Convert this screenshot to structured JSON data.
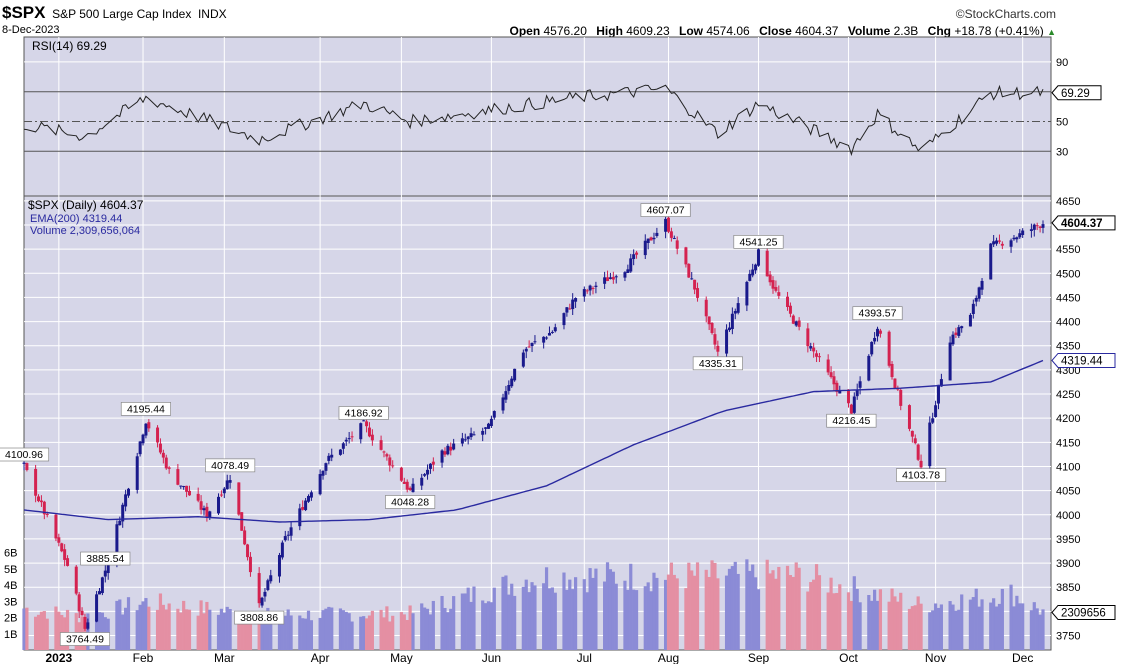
{
  "header": {
    "symbol": "$SPX",
    "name": "S&P 500 Large Cap Index",
    "exchange": "INDX",
    "date": "8-Dec-2023",
    "brand": "©StockCharts.com",
    "open_label": "Open",
    "open": "4576.20",
    "high_label": "High",
    "high": "4609.23",
    "low_label": "Low",
    "low": "4574.06",
    "close_label": "Close",
    "close": "4604.37",
    "volume_label": "Volume",
    "volume": "2.3B",
    "chg_label": "Chg",
    "chg": "+18.78 (+0.41%)",
    "chg_arrow": "▲"
  },
  "rsi_panel": {
    "legend": "RSI(14) 69.29",
    "current_label": "69.29",
    "ticks": [
      "90",
      "70",
      "50",
      "30"
    ]
  },
  "price_panel": {
    "legend_price": "$SPX (Daily) 4604.37",
    "legend_ema": "EMA(200) 4319.44",
    "legend_volume": "Volume 2,309,656,064",
    "price_tag": "4604.37",
    "ema_tag": "4319.44",
    "volume_tag": "2309656",
    "volume_ticks": [
      "6B",
      "5B",
      "4B",
      "3B",
      "2B",
      "1B"
    ]
  },
  "colors": {
    "background": "#d6d6e8",
    "grid": "#ffffff",
    "up": "#1a1a8c",
    "down": "#d42250",
    "ema": "#2a2aa0",
    "vol_up": "#8b8bd6",
    "vol_down": "#e48fa3",
    "rsi_over": "#3a8a3a"
  },
  "chart_data": {
    "type": "line",
    "title": "$SPX S&P 500 Large Cap Index INDX",
    "xlabel": "",
    "ylabel": "",
    "x_ticks": [
      "2023",
      "Feb",
      "Mar",
      "Apr",
      "May",
      "Jun",
      "Jul",
      "Aug",
      "Sep",
      "Oct",
      "Nov",
      "Dec"
    ],
    "x_tick_dates": [
      "2023-01-03",
      "2023-02-01",
      "2023-03-01",
      "2023-04-03",
      "2023-05-01",
      "2023-06-01",
      "2023-07-03",
      "2023-08-01",
      "2023-09-01",
      "2023-10-02",
      "2023-11-01",
      "2023-12-01"
    ],
    "date_range": [
      "2022-12-22",
      "2023-12-08"
    ],
    "y_ticks": [
      "4650",
      "4600",
      "4550",
      "4500",
      "4450",
      "4400",
      "4350",
      "4300",
      "4250",
      "4200",
      "4150",
      "4100",
      "4050",
      "4000",
      "3950",
      "3900",
      "3850",
      "3800",
      "3750"
    ],
    "ylim": [
      3720,
      4660
    ],
    "grid": true,
    "legend_position": "top-left",
    "series": [
      {
        "name": "$SPX (Daily)",
        "x": [
          "2022-12-22",
          "2023-01-06",
          "2023-01-12",
          "2023-01-19",
          "2023-02-02",
          "2023-02-10",
          "2023-02-23",
          "2023-03-03",
          "2023-03-13",
          "2023-03-22",
          "2023-04-05",
          "2023-04-18",
          "2023-05-04",
          "2023-05-15",
          "2023-05-31",
          "2023-06-12",
          "2023-06-22",
          "2023-06-30",
          "2023-07-17",
          "2023-07-31",
          "2023-08-10",
          "2023-08-18",
          "2023-09-01",
          "2023-09-07",
          "2023-09-26",
          "2023-10-03",
          "2023-10-12",
          "2023-10-20",
          "2023-10-27",
          "2023-11-06",
          "2023-11-13",
          "2023-11-20",
          "2023-11-30",
          "2023-12-08"
        ],
        "y": [
          4100.96,
          3895,
          3764.49,
          3885.54,
          4195.44,
          4090,
          4000,
          4078.49,
          3808.86,
          3950,
          4110,
          4186.92,
          4048.28,
          4130,
          4180,
          4340,
          4380,
          4450,
          4510,
          4607.07,
          4470,
          4335.31,
          4541.25,
          4460,
          4280,
          4216.45,
          4393.57,
          4230,
          4103.78,
          4365,
          4410,
          4555,
          4580,
          4604.37
        ]
      },
      {
        "name": "EMA(200)",
        "x": [
          "2022-12-22",
          "2023-01-20",
          "2023-02-20",
          "2023-03-20",
          "2023-04-20",
          "2023-05-20",
          "2023-06-20",
          "2023-07-20",
          "2023-08-20",
          "2023-09-20",
          "2023-10-20",
          "2023-11-20",
          "2023-12-08"
        ],
        "y": [
          4010,
          3990,
          3996,
          3985,
          3990,
          4010,
          4060,
          4145,
          4215,
          4255,
          4262,
          4275,
          4319.44
        ]
      },
      {
        "name": "RSI(14)",
        "x": [
          "2022-12-22",
          "2023-01-12",
          "2023-02-02",
          "2023-03-13",
          "2023-04-18",
          "2023-05-04",
          "2023-06-30",
          "2023-07-31",
          "2023-08-18",
          "2023-09-01",
          "2023-10-03",
          "2023-10-12",
          "2023-10-27",
          "2023-11-20",
          "2023-12-08"
        ],
        "y": [
          48,
          40,
          66,
          38,
          62,
          50,
          66,
          72,
          42,
          62,
          32,
          55,
          30,
          69,
          69.29
        ]
      },
      {
        "name": "Volume",
        "x": [
          "2022-12-22",
          "2023-01-12",
          "2023-02-02",
          "2023-03-13",
          "2023-05-04",
          "2023-06-16",
          "2023-09-15",
          "2023-10-27",
          "2023-11-27",
          "2023-12-08"
        ],
        "y": [
          2.5,
          2.0,
          2.9,
          2.1,
          2.2,
          4.4,
          4.5,
          2.7,
          3.4,
          2.309656064
        ]
      }
    ],
    "annotations": [
      {
        "label": "4100.96",
        "date": "2022-12-22",
        "value": 4100.96
      },
      {
        "label": "3764.49",
        "date": "2023-01-12",
        "value": 3764.49
      },
      {
        "label": "3885.54",
        "date": "2023-01-19",
        "value": 3885.54
      },
      {
        "label": "4195.44",
        "date": "2023-02-02",
        "value": 4195.44
      },
      {
        "label": "4078.49",
        "date": "2023-03-03",
        "value": 4078.49
      },
      {
        "label": "3808.86",
        "date": "2023-03-13",
        "value": 3808.86
      },
      {
        "label": "4186.92",
        "date": "2023-04-18",
        "value": 4186.92
      },
      {
        "label": "4048.28",
        "date": "2023-05-04",
        "value": 4048.28
      },
      {
        "label": "4607.07",
        "date": "2023-07-31",
        "value": 4607.07
      },
      {
        "label": "4335.31",
        "date": "2023-08-18",
        "value": 4335.31
      },
      {
        "label": "4541.25",
        "date": "2023-09-01",
        "value": 4541.25
      },
      {
        "label": "4216.45",
        "date": "2023-10-03",
        "value": 4216.45
      },
      {
        "label": "4393.57",
        "date": "2023-10-12",
        "value": 4393.57
      },
      {
        "label": "4103.78",
        "date": "2023-10-27",
        "value": 4103.78
      }
    ]
  }
}
